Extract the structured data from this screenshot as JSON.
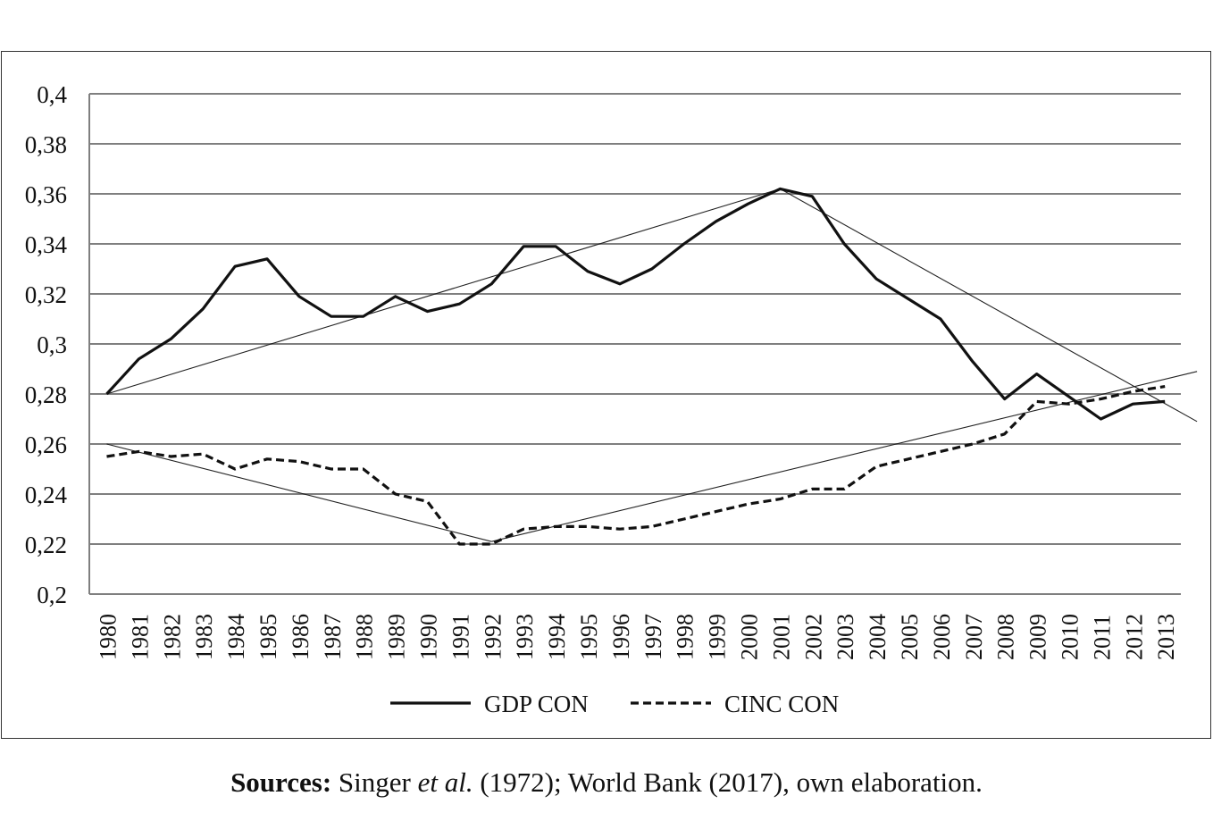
{
  "chart_data": {
    "type": "line",
    "title": "",
    "xlabel": "",
    "ylabel": "",
    "ylim": [
      0.2,
      0.4
    ],
    "yticks": [
      "0,2",
      "0,22",
      "0,24",
      "0,26",
      "0,28",
      "0,3",
      "0,32",
      "0,34",
      "0,36",
      "0,38",
      "0,4"
    ],
    "x": [
      "1980",
      "1981",
      "1982",
      "1983",
      "1984",
      "1985",
      "1986",
      "1987",
      "1988",
      "1989",
      "1990",
      "1991",
      "1992",
      "1993",
      "1994",
      "1995",
      "1996",
      "1997",
      "1998",
      "1999",
      "2000",
      "2001",
      "2002",
      "2003",
      "2004",
      "2005",
      "2006",
      "2007",
      "2008",
      "2009",
      "2010",
      "2011",
      "2012",
      "2013"
    ],
    "grid": true,
    "legend_position": "bottom",
    "series": [
      {
        "name": "GDP CON",
        "style": "solid",
        "values": [
          0.28,
          0.294,
          0.302,
          0.314,
          0.331,
          0.334,
          0.319,
          0.311,
          0.311,
          0.319,
          0.313,
          0.316,
          0.324,
          0.339,
          0.339,
          0.329,
          0.324,
          0.33,
          0.34,
          0.349,
          0.356,
          0.362,
          0.359,
          0.34,
          0.326,
          0.318,
          0.31,
          0.293,
          0.278,
          0.288,
          0.279,
          0.27,
          0.276,
          0.277
        ]
      },
      {
        "name": "CINC CON",
        "style": "dashed",
        "values": [
          0.255,
          0.257,
          0.255,
          0.256,
          0.25,
          0.254,
          0.253,
          0.25,
          0.25,
          0.24,
          0.237,
          0.22,
          0.22,
          0.226,
          0.227,
          0.227,
          0.226,
          0.227,
          0.23,
          0.233,
          0.236,
          0.238,
          0.242,
          0.242,
          0.251,
          0.254,
          0.257,
          0.26,
          0.264,
          0.277,
          0.276,
          0.278,
          0.281,
          0.283
        ]
      }
    ],
    "trend_lines": [
      {
        "from": [
          "1980",
          0.28
        ],
        "to": [
          "2001",
          0.362
        ]
      },
      {
        "from": [
          "2001",
          0.362
        ],
        "to": [
          "2014",
          0.269
        ]
      },
      {
        "from": [
          "1980",
          0.26
        ],
        "to": [
          "1992",
          0.221
        ]
      },
      {
        "from": [
          "1992",
          0.221
        ],
        "to": [
          "2014",
          0.289
        ]
      }
    ]
  },
  "caption": {
    "label": "Sources:",
    "pre": " Singer ",
    "italic": "et al.",
    "post": " (1972); World Bank (2017), own elaboration."
  },
  "colors": {
    "line": "#111111",
    "grid": "#7f7f7f",
    "trend": "#222222"
  }
}
